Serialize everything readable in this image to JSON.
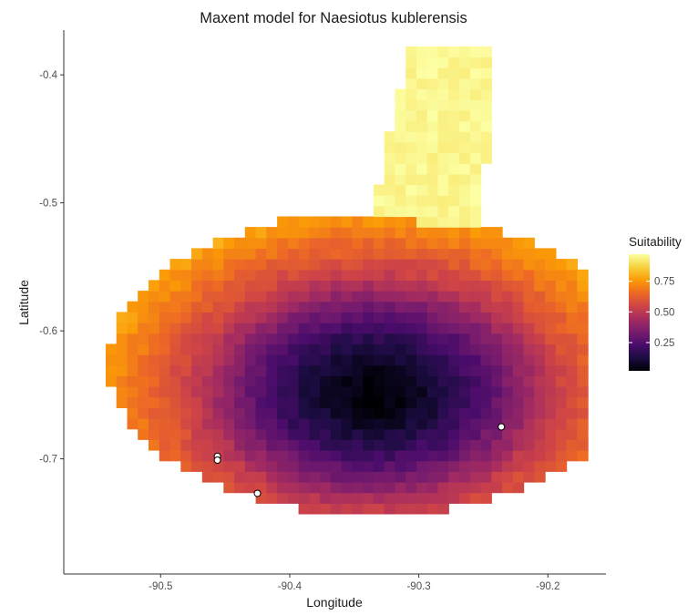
{
  "chart_data": {
    "type": "heatmap",
    "title": "Maxent model for Naesiotus kublerensis",
    "xlabel": "Longitude",
    "ylabel": "Latitude",
    "xlim": [
      -90.575,
      -90.155
    ],
    "ylim": [
      -0.79,
      -0.365
    ],
    "x_ticks": [
      -90.5,
      -90.4,
      -90.3,
      -90.2
    ],
    "x_tick_labels": [
      "-90.5",
      "-90.4",
      "-90.3",
      "-90.2"
    ],
    "y_ticks": [
      -0.4,
      -0.5,
      -0.6,
      -0.7
    ],
    "y_tick_labels": [
      "-0.4",
      "-0.5",
      "-0.6",
      "-0.7"
    ],
    "grid": false,
    "cell_size_deg": 0.0083,
    "suitability_model": {
      "center": [
        -90.335,
        -0.648
      ],
      "core_radius_deg": [
        0.095,
        0.063
      ],
      "edge_radius_deg": [
        0.205,
        0.118
      ]
    },
    "occurrence_points": [
      {
        "x": -90.456,
        "y": -0.698
      },
      {
        "x": -90.456,
        "y": -0.701
      },
      {
        "x": -90.425,
        "y": -0.727
      },
      {
        "x": -90.236,
        "y": -0.675
      }
    ],
    "legend": {
      "title": "Suitability",
      "position": "right",
      "range": [
        0.02,
        0.97
      ],
      "ticks": [
        0.25,
        0.5,
        0.75
      ],
      "tick_labels": [
        "0.25",
        "0.50",
        "0.75"
      ],
      "colormap": "inferno",
      "colors": [
        "#000004",
        "#1b0c41",
        "#4a0c6b",
        "#781c6d",
        "#a52c60",
        "#cf4446",
        "#ed6925",
        "#fb9b06",
        "#f7d13d",
        "#fcffa4"
      ]
    }
  }
}
